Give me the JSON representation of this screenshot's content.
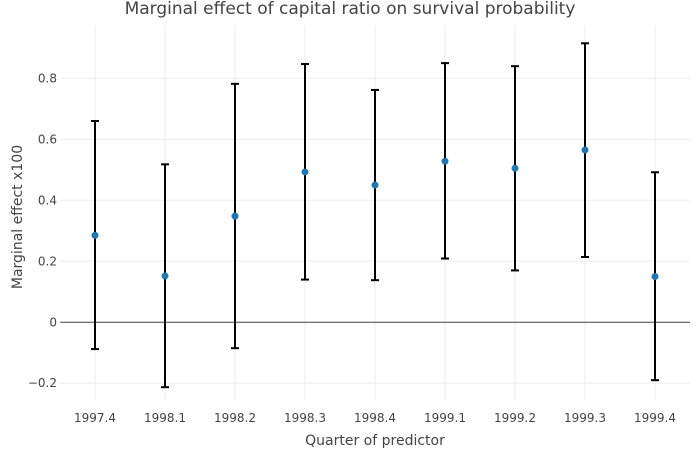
{
  "chart_data": {
    "type": "scatter",
    "title": "Marginal effect of capital ratio on survival probability",
    "xlabel": "Quarter of predictor",
    "ylabel": "Marginal effect x100",
    "categories": [
      "1997.4",
      "1998.1",
      "1998.2",
      "1998.3",
      "1998.4",
      "1999.1",
      "1999.2",
      "1999.3",
      "1999.4"
    ],
    "series": [
      {
        "values": [
          0.285,
          0.152,
          0.348,
          0.493,
          0.45,
          0.528,
          0.505,
          0.565,
          0.15
        ],
        "lower": [
          -0.088,
          -0.213,
          -0.085,
          0.14,
          0.138,
          0.209,
          0.17,
          0.214,
          -0.19
        ],
        "upper": [
          0.66,
          0.518,
          0.782,
          0.847,
          0.762,
          0.85,
          0.84,
          0.915,
          0.492
        ]
      }
    ],
    "yticks": [
      -0.2,
      0,
      0.2,
      0.4,
      0.6,
      0.8
    ],
    "ytick_labels": [
      "−0.2",
      "0",
      "0.2",
      "0.4",
      "0.6",
      "0.8"
    ],
    "ylim": [
      -0.255,
      0.975
    ],
    "grid": true,
    "zero_line": true,
    "colors": {
      "point": "#1f77b4",
      "error_bar": "#000000",
      "grid": "#eeeeee",
      "zero_line": "#444444"
    }
  }
}
